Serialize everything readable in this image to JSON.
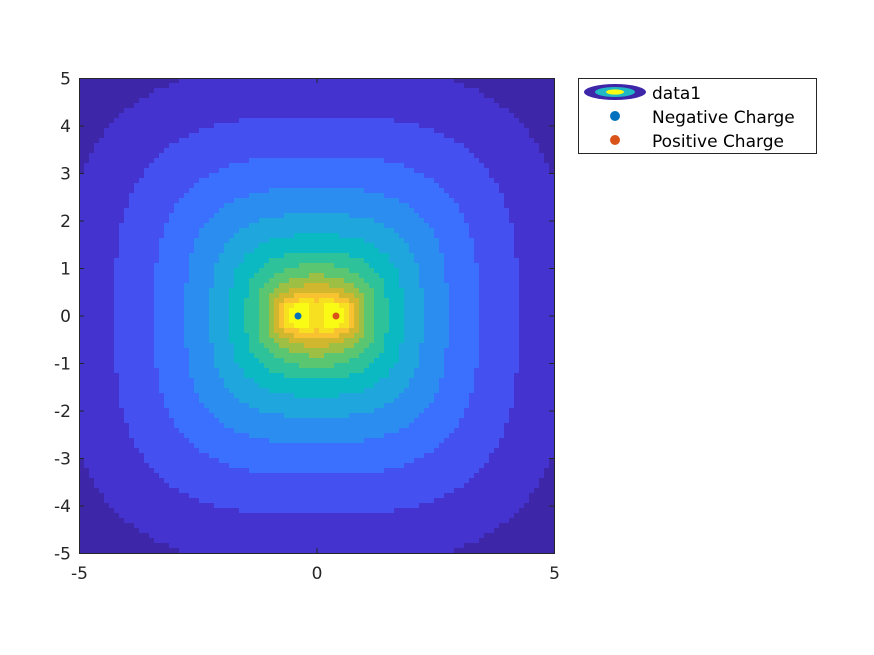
{
  "chart_data": {
    "type": "contour",
    "xlim": [
      -5,
      5
    ],
    "ylim": [
      -5,
      5
    ],
    "xticks": [
      "-5",
      "0",
      "5"
    ],
    "yticks": [
      "5",
      "4",
      "3",
      "2",
      "1",
      "0",
      "-1",
      "-2",
      "-3",
      "-4",
      "-5"
    ],
    "grid": false,
    "colormap": "parula",
    "colors": [
      "#3e26a8",
      "#4433cf",
      "#4550f0",
      "#3b6ffd",
      "#2c8df0",
      "#1fa6dc",
      "#0bb9c2",
      "#2dc29a",
      "#5ac671",
      "#9cbf44",
      "#d1b72e",
      "#f9c230",
      "#f6e01f",
      "#f9fb15"
    ],
    "contour_field": "sum of 1/r over both charges",
    "charges": [
      {
        "name": "Negative Charge",
        "x": -0.4,
        "y": 0,
        "color": "#0072bd"
      },
      {
        "name": "Positive Charge",
        "x": 0.4,
        "y": 0,
        "color": "#d95319"
      }
    ],
    "legend": {
      "placement": "outside-top-right",
      "entries": [
        "data1",
        "Negative Charge",
        "Positive Charge"
      ]
    }
  }
}
